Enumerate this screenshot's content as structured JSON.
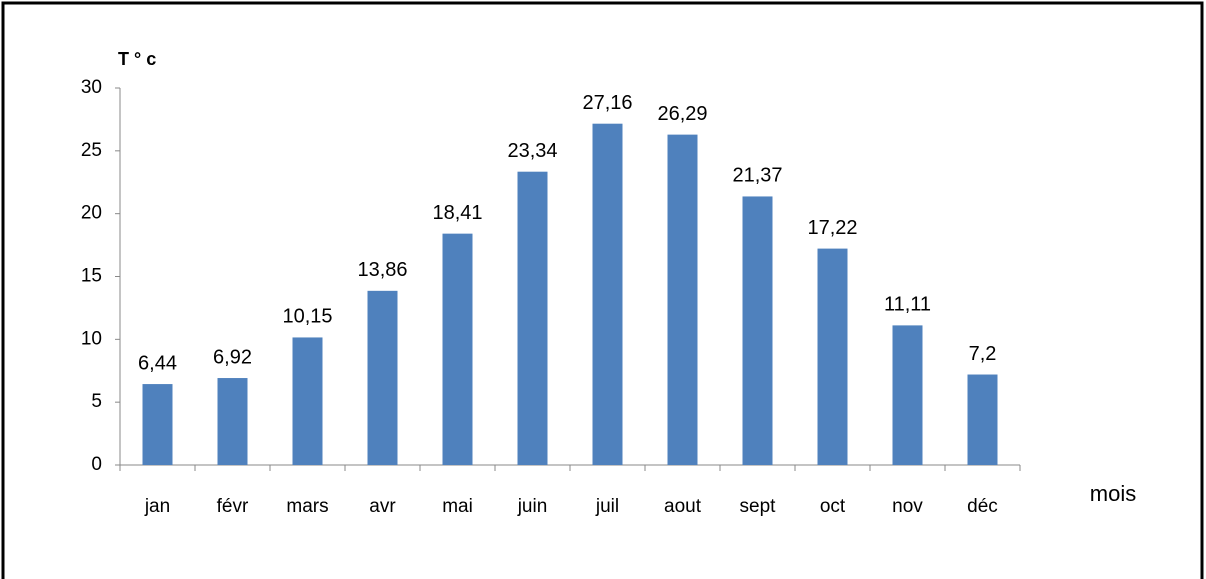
{
  "chart_data": {
    "type": "bar",
    "y_label": "T ° c",
    "x_label": "mois",
    "categories": [
      "jan",
      "févr",
      "mars",
      "avr",
      "mai",
      "juin",
      "juil",
      "aout",
      "sept",
      "oct",
      "nov",
      "déc"
    ],
    "values": [
      6.44,
      6.92,
      10.15,
      13.86,
      18.41,
      23.34,
      27.16,
      26.29,
      21.37,
      17.22,
      11.11,
      7.2
    ],
    "value_labels": [
      "6,44",
      "6,92",
      "10,15",
      "13,86",
      "18,41",
      "23,34",
      "27,16",
      "26,29",
      "21,37",
      "17,22",
      "11,11",
      "7,2"
    ],
    "color": "#4f81bd",
    "ylim": [
      0,
      30
    ],
    "yticks": [
      0,
      5,
      10,
      15,
      20,
      25,
      30
    ],
    "grid": false
  }
}
